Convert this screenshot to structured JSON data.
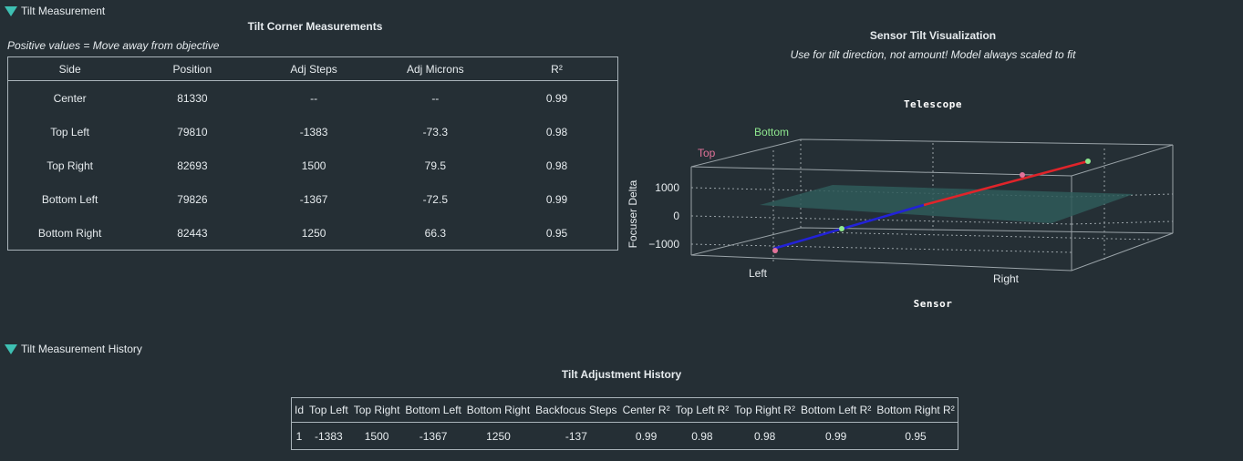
{
  "tilt_section": {
    "title": "Tilt Measurement"
  },
  "corner_table": {
    "title": "Tilt Corner Measurements",
    "note": "Positive values = Move away from objective",
    "columns": [
      "Side",
      "Position",
      "Adj Steps",
      "Adj Microns",
      "R²"
    ],
    "rows": [
      [
        "Center",
        "81330",
        "--",
        "--",
        "0.99"
      ],
      [
        "Top Left",
        "79810",
        "-1383",
        "-73.3",
        "0.98"
      ],
      [
        "Top Right",
        "82693",
        "1500",
        "79.5",
        "0.98"
      ],
      [
        "Bottom Left",
        "79826",
        "-1367",
        "-72.5",
        "0.99"
      ],
      [
        "Bottom Right",
        "82443",
        "1250",
        "66.3",
        "0.95"
      ]
    ]
  },
  "visualization": {
    "title": "Sensor Tilt Visualization",
    "subtitle": "Use for tilt direction, not amount! Model always scaled to fit",
    "top_label": "Telescope",
    "bottom_label": "Sensor",
    "axis_label": "Focuser Delta",
    "ticks": [
      "1000",
      "0",
      "−1000"
    ],
    "labels": {
      "top": "Top",
      "bottom": "Bottom",
      "left": "Left",
      "right": "Right"
    },
    "colors": {
      "top": "#e3739a",
      "bottom": "#8fe88f",
      "line_red": "#e0242a",
      "line_blue": "#2222d8",
      "plane": "#2f5a59"
    }
  },
  "history_section": {
    "title": "Tilt Measurement History"
  },
  "history_table": {
    "title": "Tilt Adjustment History",
    "columns": [
      "Id",
      "Top Left",
      "Top Right",
      "Bottom Left",
      "Bottom Right",
      "Backfocus Steps",
      "Center R²",
      "Top Left R²",
      "Top Right R²",
      "Bottom Left R²",
      "Bottom Right R²"
    ],
    "rows": [
      [
        "1",
        "-1383",
        "1500",
        "-1367",
        "1250",
        "-137",
        "0.99",
        "0.98",
        "0.98",
        "0.99",
        "0.95"
      ]
    ]
  }
}
